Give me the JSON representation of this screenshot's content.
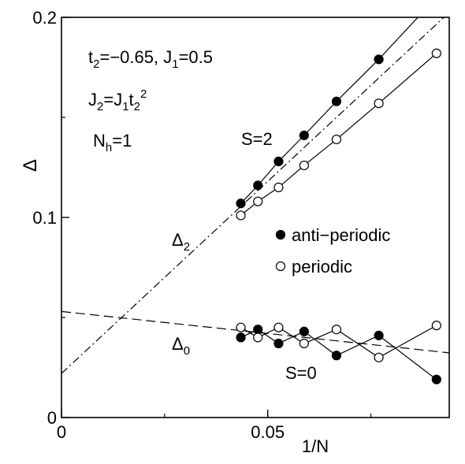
{
  "chart_data": {
    "type": "line",
    "xlabel": "1/N",
    "ylabel": "Δ",
    "xlim": [
      0,
      0.094
    ],
    "ylim": [
      0,
      0.2
    ],
    "xticks": [
      {
        "value": 0,
        "label": "0"
      },
      {
        "value": 0.05,
        "label": "0.05"
      }
    ],
    "yticks": [
      {
        "value": 0,
        "label": "0"
      },
      {
        "value": 0.1,
        "label": "0.1"
      },
      {
        "value": 0.2,
        "label": "0.2"
      }
    ],
    "grid": false,
    "legend_position": "center-right",
    "annotations": {
      "params_line1": {
        "pre": "t",
        "sub": "2",
        "mid": "=−0.65,  J",
        "sub2": "1",
        "post": "=0.5"
      },
      "params_line2": {
        "pre": "J",
        "sub": "2",
        "mid": "=J",
        "sub2": "1",
        "mid2": "t",
        "sub3": "2",
        "sup": "2"
      },
      "params_line3": {
        "pre": "N",
        "sub": "h",
        "post": "=1"
      },
      "s2_label": "S=2",
      "s0_label": "S=0",
      "delta2_label": {
        "sym": "Δ",
        "sub": "2"
      },
      "delta0_label": {
        "sym": "Δ",
        "sub": "0"
      }
    },
    "series": [
      {
        "name": "anti−periodic",
        "marker": "filled-circle",
        "points": [
          {
            "group": "S=2",
            "x": [
              0.04348,
              0.04762,
              0.05263,
              0.05882,
              0.06667,
              0.07692,
              0.09091
            ],
            "y": [
              0.107,
              0.116,
              0.128,
              0.141,
              0.158,
              0.179,
              0.21
            ]
          },
          {
            "group": "S=0",
            "x": [
              0.04348,
              0.04762,
              0.05263,
              0.05882,
              0.06667,
              0.07692,
              0.09091
            ],
            "y": [
              0.04,
              0.044,
              0.037,
              0.043,
              0.031,
              0.041,
              0.019
            ]
          }
        ]
      },
      {
        "name": "periodic",
        "marker": "open-circle",
        "points": [
          {
            "group": "S=2",
            "x": [
              0.04348,
              0.04762,
              0.05263,
              0.05882,
              0.06667,
              0.07692,
              0.09091
            ],
            "y": [
              0.101,
              0.108,
              0.115,
              0.126,
              0.139,
              0.157,
              0.182
            ]
          },
          {
            "group": "S=0",
            "x": [
              0.04348,
              0.04762,
              0.05263,
              0.05882,
              0.06667,
              0.07692,
              0.09091
            ],
            "y": [
              0.045,
              0.04,
              0.045,
              0.037,
              0.044,
              0.03,
              0.046
            ]
          }
        ]
      }
    ],
    "fits": [
      {
        "label": "Δ2",
        "style": "dash-dot",
        "intercept": 0.022,
        "slope": 1.92
      },
      {
        "label": "Δ0",
        "style": "dashed",
        "intercept": 0.053,
        "slope": -0.22
      }
    ]
  }
}
